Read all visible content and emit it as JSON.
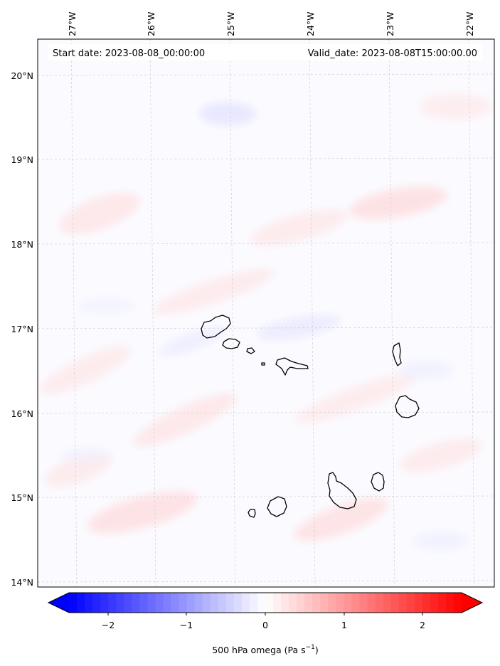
{
  "header": {
    "start_date": "Start date: 2023-08-08_00:00:00",
    "valid_date": "Valid_date: 2023-08-08T15:00:00.00"
  },
  "map": {
    "lon_labels": [
      "27°W",
      "26°W",
      "25°W",
      "24°W",
      "23°W",
      "22°W"
    ],
    "lat_labels": [
      "20°N",
      "19°N",
      "18°N",
      "17°N",
      "16°N",
      "15°N",
      "14°N"
    ],
    "gridlines": true
  },
  "colorbar": {
    "tick_labels": [
      "−2",
      "−1",
      "0",
      "1",
      "2"
    ],
    "title": "500 hPa omega (Pa s",
    "title_sup": "−1",
    "title_end": ")",
    "colors": {
      "negative": "#0000ff",
      "zero": "#ffffff",
      "positive": "#ff0000"
    }
  }
}
